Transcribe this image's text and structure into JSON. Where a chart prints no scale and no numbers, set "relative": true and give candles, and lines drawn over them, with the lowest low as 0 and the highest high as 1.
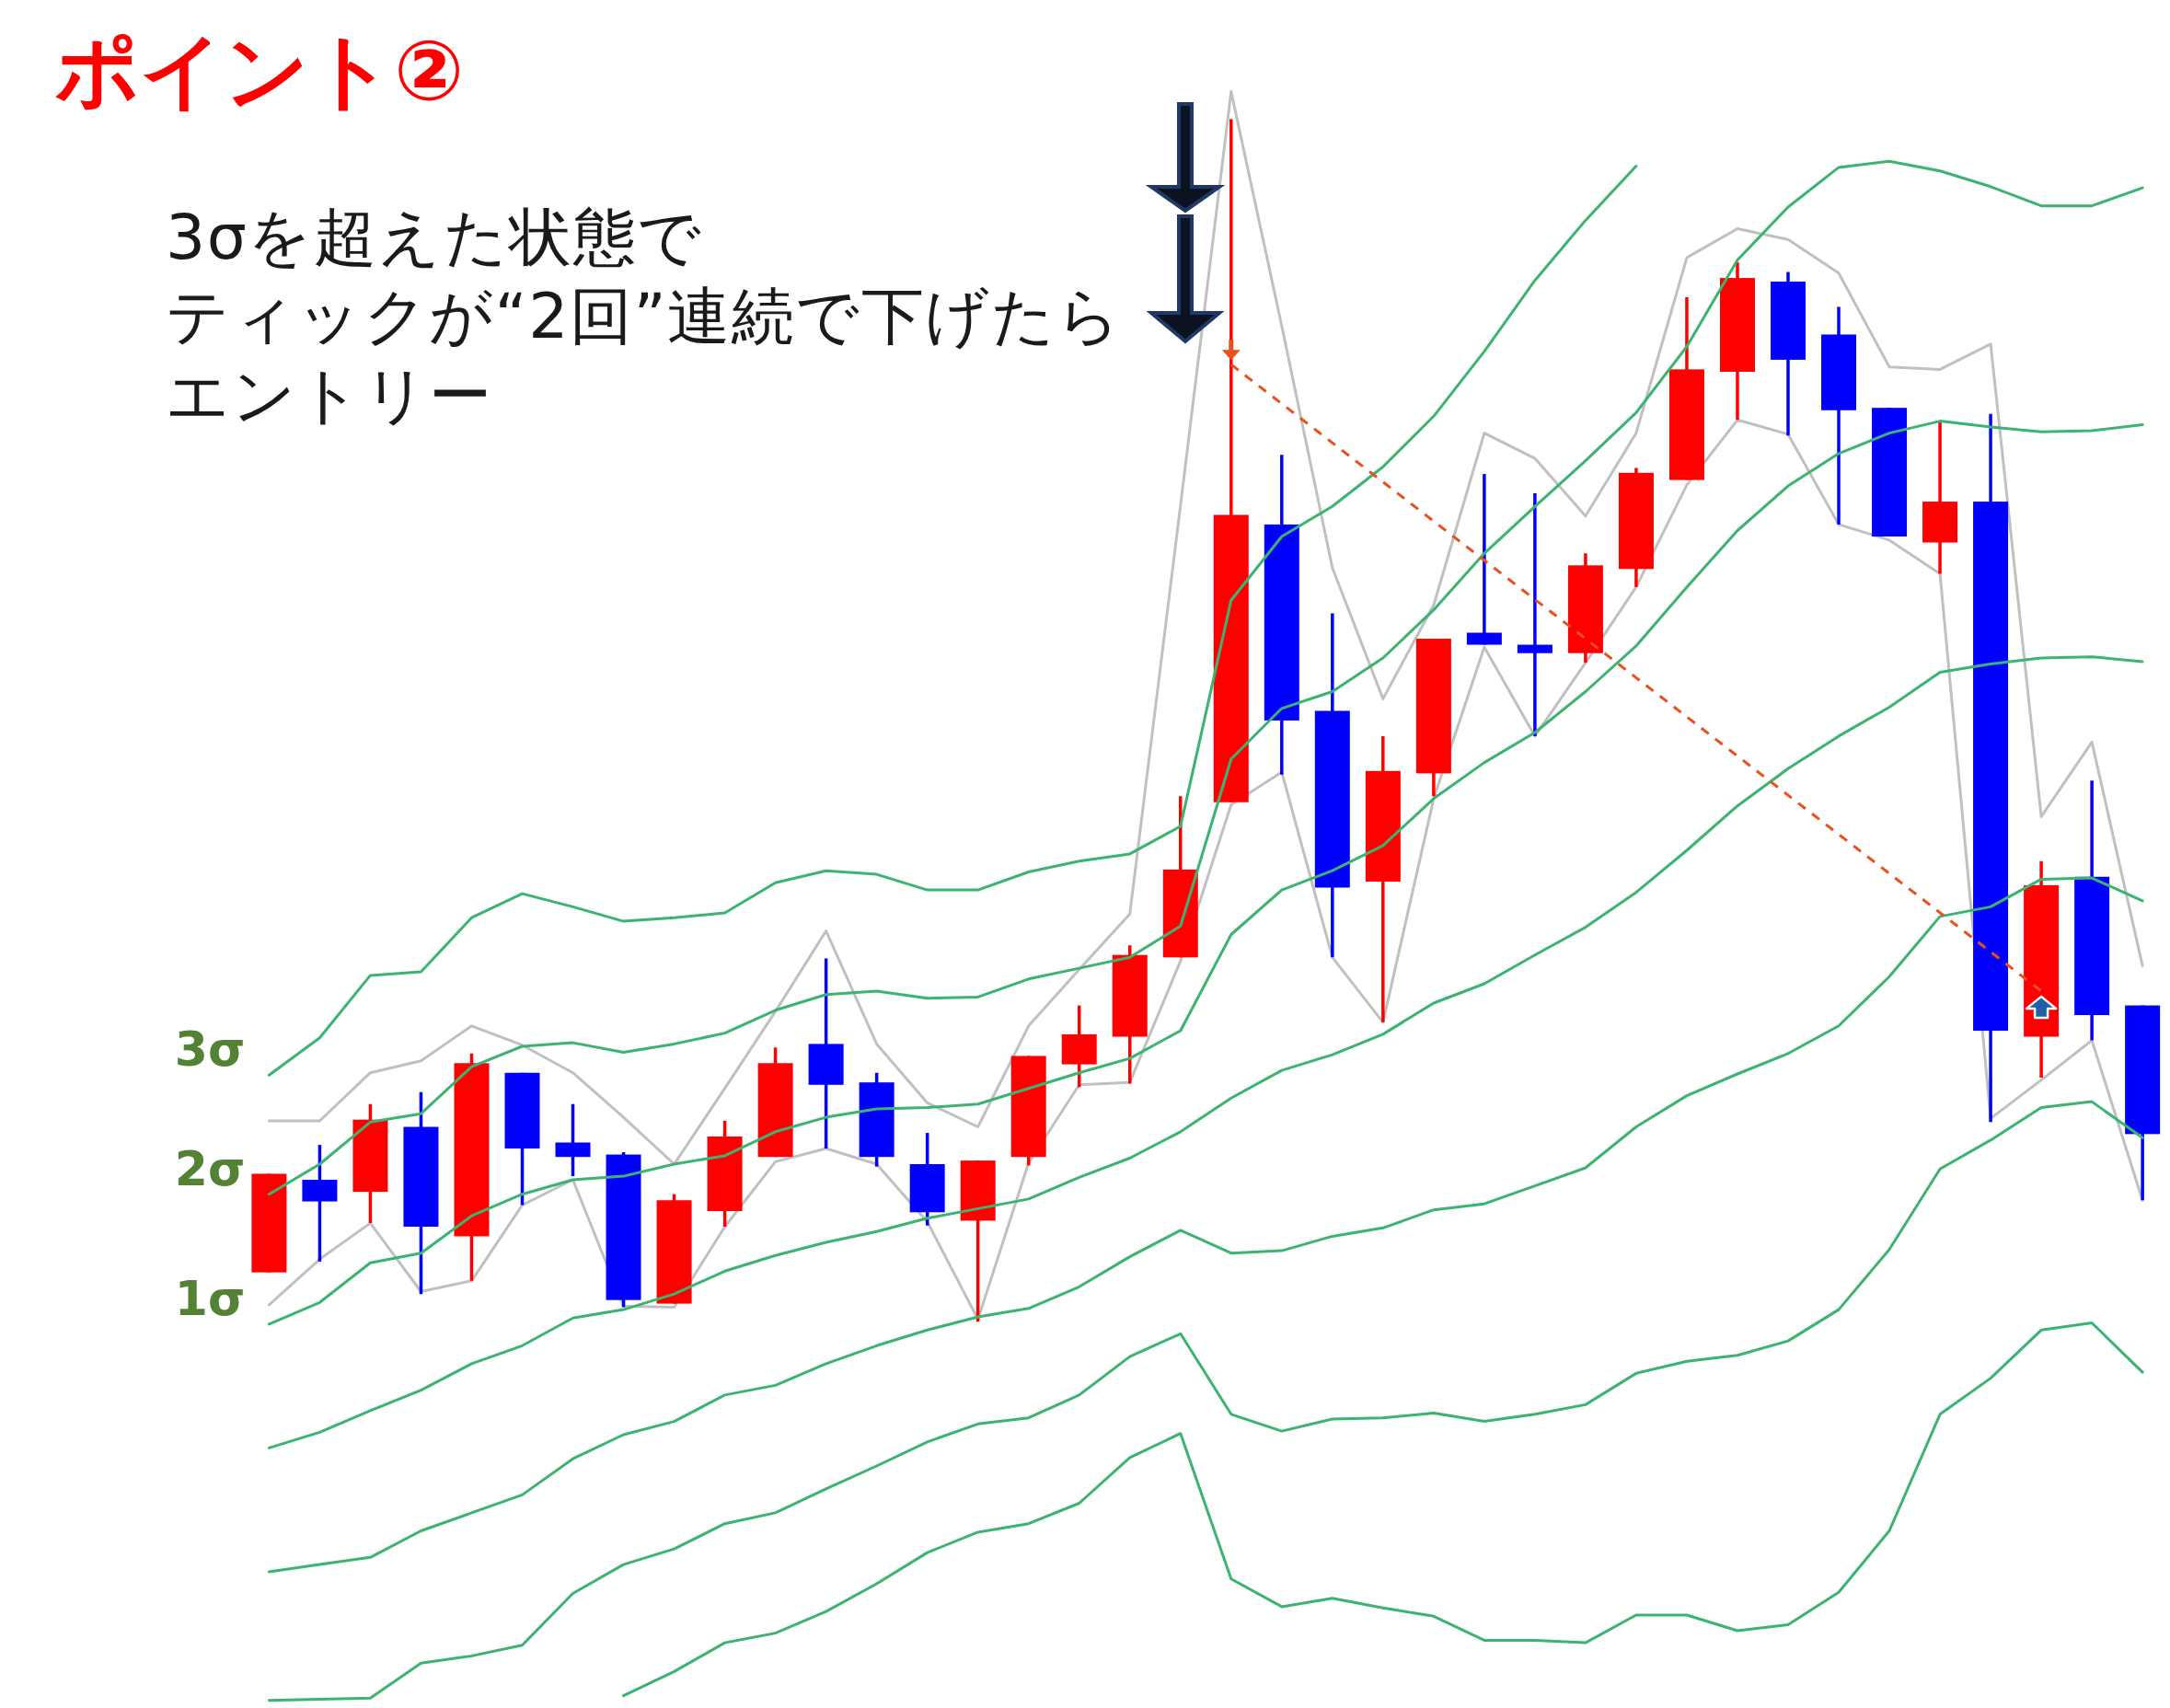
{
  "chart_data": {
    "type": "candlestick",
    "relative": true,
    "title": "ポイント②",
    "annotations": [
      "3σを超えた状態で",
      "ティックが“2回”連続で下げたら",
      "エントリー"
    ],
    "categories": [
      null,
      null,
      null,
      null,
      null,
      null,
      null,
      null,
      null,
      null,
      null,
      null,
      null,
      null,
      null,
      null,
      null,
      null,
      null,
      null,
      null,
      null,
      null,
      null,
      null,
      null,
      null,
      null,
      null,
      null,
      null,
      null,
      null,
      null,
      null,
      null,
      null,
      null
    ],
    "ohlc": [
      [
        0.041,
        0.123,
        0.041,
        0.123
      ],
      [
        0.118,
        0.147,
        0.05,
        0.1
      ],
      [
        0.108,
        0.181,
        0.082,
        0.168
      ],
      [
        0.162,
        0.191,
        0.023,
        0.079
      ],
      [
        0.071,
        0.223,
        0.034,
        0.215
      ],
      [
        0.207,
        0.207,
        0.097,
        0.144
      ],
      [
        0.149,
        0.181,
        0.121,
        0.137
      ],
      [
        0.139,
        0.141,
        0.012,
        0.018
      ],
      [
        0.015,
        0.106,
        0.015,
        0.101
      ],
      [
        0.092,
        0.167,
        0.079,
        0.154
      ],
      [
        0.137,
        0.228,
        0.137,
        0.215
      ],
      [
        0.231,
        0.302,
        0.144,
        0.197
      ],
      [
        0.199,
        0.207,
        0.129,
        0.137
      ],
      [
        0.131,
        0.157,
        0.08,
        0.091
      ],
      [
        0.084,
        0.134,
        0,
        0.134
      ],
      [
        0.137,
        0.221,
        0.13,
        0.221
      ],
      [
        0.214,
        0.263,
        0.195,
        0.239
      ],
      [
        0.237,
        0.313,
        0.198,
        0.305
      ],
      [
        0.303,
        0.437,
        0.303,
        0.376
      ],
      [
        0.432,
        1,
        0.432,
        0.671
      ],
      [
        0.663,
        0.721,
        0.455,
        0.5
      ],
      [
        0.508,
        0.589,
        0.303,
        0.361
      ],
      [
        0.366,
        0.487,
        0.249,
        0.458
      ],
      [
        0.456,
        0.568,
        0.437,
        0.568
      ],
      [
        0.573,
        0.705,
        0.563,
        0.563
      ],
      [
        0.563,
        0.689,
        0.487,
        0.556
      ],
      [
        0.556,
        0.639,
        0.548,
        0.629
      ],
      [
        0.626,
        0.71,
        0.611,
        0.706
      ],
      [
        0.7,
        0.852,
        0.7,
        0.792
      ],
      [
        0.79,
        0.881,
        0.75,
        0.868
      ],
      [
        0.865,
        0.873,
        0.737,
        0.8
      ],
      [
        0.821,
        0.844,
        0.663,
        0.758
      ],
      [
        0.76,
        0.76,
        0.653,
        0.653
      ],
      [
        0.648,
        0.748,
        0.622,
        0.682
      ],
      [
        0.682,
        0.755,
        0.166,
        0.242
      ],
      [
        0.237,
        0.383,
        0.203,
        0.363
      ],
      [
        0.37,
        0.45,
        0.234,
        0.255
      ],
      [
        0.263,
        0.263,
        0.101,
        0.156
      ]
    ],
    "colors": [
      "#ff0000",
      "#0000ff",
      "#ff0000",
      "#0000ff",
      "#ff0000",
      "#0000ff",
      "#0000ff",
      "#0000ff",
      "#ff0000",
      "#ff0000",
      "#ff0000",
      "#0000ff",
      "#0000ff",
      "#0000ff",
      "#ff0000",
      "#ff0000",
      "#ff0000",
      "#ff0000",
      "#ff0000",
      "#ff0000",
      "#0000ff",
      "#0000ff",
      "#ff0000",
      "#ff0000",
      "#0000ff",
      "#0000ff",
      "#ff0000",
      "#ff0000",
      "#ff0000",
      "#ff0000",
      "#0000ff",
      "#0000ff",
      "#0000ff",
      "#ff0000",
      "#0000ff",
      "#ff0000",
      "#0000ff",
      "#0000ff"
    ],
    "series": [
      {
        "type": "line",
        "color": "#c0c0c0",
        "values": [
          0.167,
          0.167,
          0.207,
          0.217,
          0.246,
          0.23,
          0.207,
          0.17,
          0.131,
          0.194,
          0.258,
          0.325,
          0.231,
          0.182,
          0.162,
          0.246,
          0.293,
          0.339,
          0.679,
          1.023,
          0.828,
          0.627,
          0.518,
          0.596,
          0.739,
          0.718,
          0.67,
          0.739,
          0.885,
          0.909,
          0.9,
          0.872,
          0.794,
          0.792,
          0.813,
          0.42,
          0.482,
          0.296
        ]
      },
      {
        "type": "line",
        "color": "#c0c0c0",
        "values": [
          0.014,
          0.052,
          0.082,
          0.025,
          0.034,
          0.097,
          0.118,
          0.013,
          0.012,
          0.079,
          0.133,
          0.144,
          0.131,
          0.083,
          0.002,
          0.132,
          0.197,
          0.199,
          0.3,
          0.43,
          0.457,
          0.303,
          0.249,
          0.435,
          0.561,
          0.487,
          0.548,
          0.611,
          0.696,
          0.75,
          0.738,
          0.663,
          0.65,
          0.622,
          0.169,
          0.201,
          0.234,
          0.101
        ]
      },
      {
        "type": "line",
        "name": "3σ",
        "color": "#3cb371",
        "values": [
          0.205,
          0.236,
          0.288,
          0.291,
          0.336,
          0.356,
          0.345,
          0.333,
          0.336,
          0.34,
          0.365,
          0.375,
          0.372,
          0.359,
          0.359,
          0.374,
          0.383,
          0.389,
          0.412,
          0.6,
          0.653,
          0.678,
          0.711,
          0.753,
          0.807,
          0.866,
          0.916,
          0.961,
          null,
          null,
          null,
          null,
          null,
          null,
          null,
          null,
          null,
          null
        ]
      },
      {
        "type": "line",
        "name": "2σ",
        "color": "#3cb371",
        "values": [
          0.106,
          0.131,
          0.166,
          0.173,
          0.212,
          0.229,
          0.232,
          0.224,
          0.231,
          0.24,
          0.259,
          0.272,
          0.275,
          0.269,
          0.27,
          0.285,
          0.294,
          0.303,
          0.329,
          0.468,
          0.51,
          0.524,
          0.552,
          0.592,
          0.639,
          0.678,
          0.716,
          0.756,
          0.811,
          0.883,
          0.927,
          0.96,
          0.965,
          0.957,
          0.944,
          0.928,
          0.928,
          0.943
        ]
      },
      {
        "type": "line",
        "name": "1σ",
        "color": "#3cb371",
        "values": [
          -0.002,
          0.016,
          0.049,
          0.057,
          0.088,
          0.106,
          0.118,
          0.121,
          0.131,
          0.138,
          0.158,
          0.17,
          0.177,
          0.178,
          0.181,
          0.194,
          0.207,
          0.219,
          0.242,
          0.322,
          0.359,
          0.375,
          0.396,
          0.435,
          0.465,
          0.49,
          0.524,
          0.562,
          0.611,
          0.658,
          0.695,
          0.722,
          0.739,
          0.749,
          0.744,
          0.74,
          0.741,
          0.746
        ]
      },
      {
        "type": "line",
        "color": "#3cb371",
        "values": [
          -0.105,
          -0.092,
          -0.074,
          -0.057,
          -0.035,
          -0.02,
          0.003,
          0.01,
          0.023,
          0.042,
          0.055,
          0.066,
          0.075,
          0.086,
          0.094,
          0.102,
          0.12,
          0.136,
          0.158,
          0.186,
          0.209,
          0.222,
          0.239,
          0.265,
          0.281,
          0.305,
          0.328,
          0.357,
          0.392,
          0.429,
          0.46,
          0.487,
          0.511,
          0.54,
          0.547,
          0.552,
          0.553,
          0.549
        ]
      },
      {
        "type": "line",
        "color": "#3cb371",
        "values": [
          -0.208,
          -0.202,
          -0.196,
          -0.174,
          -0.159,
          -0.144,
          -0.114,
          -0.094,
          -0.083,
          -0.061,
          -0.053,
          -0.035,
          -0.02,
          -0.007,
          0.004,
          0.011,
          0.029,
          0.054,
          0.076,
          0.057,
          0.059,
          0.071,
          0.078,
          0.093,
          0.098,
          0.113,
          0.128,
          0.162,
          0.188,
          0.206,
          0.223,
          0.246,
          0.287,
          0.337,
          0.345,
          0.368,
          0.369,
          0.35
        ]
      },
      {
        "type": "line",
        "color": "#3cb371",
        "values": [
          -0.315,
          -0.314,
          -0.313,
          -0.284,
          -0.278,
          -0.269,
          -0.226,
          -0.202,
          -0.189,
          -0.168,
          -0.159,
          -0.139,
          -0.12,
          -0.1,
          -0.085,
          -0.08,
          -0.061,
          -0.029,
          -0.01,
          -0.077,
          -0.091,
          -0.081,
          -0.08,
          -0.076,
          -0.083,
          -0.077,
          -0.069,
          -0.043,
          -0.033,
          -0.028,
          -0.016,
          0.01,
          0.06,
          0.127,
          0.151,
          0.178,
          0.183,
          0.153
        ]
      },
      {
        "type": "line",
        "color": "#3cb371",
        "values": [
          null,
          null,
          null,
          null,
          null,
          null,
          null,
          -0.311,
          -0.291,
          -0.267,
          -0.259,
          -0.241,
          -0.218,
          -0.192,
          -0.175,
          -0.168,
          -0.151,
          -0.113,
          -0.093,
          -0.214,
          -0.237,
          -0.23,
          -0.238,
          -0.245,
          -0.265,
          -0.265,
          -0.267,
          -0.244,
          -0.244,
          -0.257,
          -0.252,
          -0.225,
          -0.174,
          -0.077,
          -0.047,
          -0.007,
          -0.001,
          -0.042
        ]
      },
      {
        "type": "line",
        "color": "#e8501e",
        "line_style": "dashed",
        "values": [
          null,
          null,
          null,
          null,
          null,
          null,
          null,
          null,
          null,
          null,
          null,
          null,
          null,
          null,
          null,
          null,
          null,
          null,
          null,
          0.796,
          null,
          null,
          null,
          null,
          null,
          null,
          null,
          null,
          null,
          null,
          null,
          null,
          null,
          null,
          null,
          0.275,
          null,
          null
        ]
      }
    ]
  }
}
